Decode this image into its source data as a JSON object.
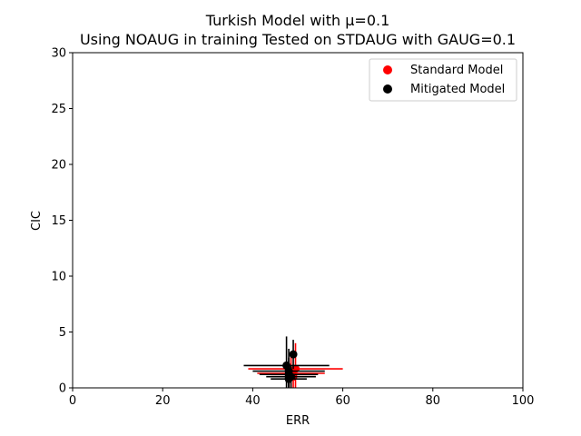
{
  "chart_data": {
    "type": "scatter",
    "title": "Turkish Model with μ=0.1",
    "subtitle": "Using NOAUG in training Tested on STDAUG with GAUG=0.1",
    "xlabel": "ERR",
    "ylabel": "CIC",
    "xlim": [
      0,
      100
    ],
    "ylim": [
      0,
      30
    ],
    "xticks": [
      0,
      20,
      40,
      60,
      80,
      100
    ],
    "yticks": [
      0,
      5,
      10,
      15,
      20,
      25,
      30
    ],
    "xtick_labels": [
      "0",
      "20",
      "40",
      "60",
      "80",
      "100"
    ],
    "ytick_labels": [
      "0",
      "5",
      "10",
      "15",
      "20",
      "25",
      "30"
    ],
    "grid": false,
    "legend_position": "top-right",
    "series": [
      {
        "name": "Standard Model",
        "color": "#ff0000",
        "points": [
          {
            "x": 49.5,
            "y": 1.7,
            "xerr": 10.5,
            "yerr": 2.3
          },
          {
            "x": 48.5,
            "y": 1.3,
            "xerr": 7.5,
            "yerr": 1.5
          },
          {
            "x": 49.0,
            "y": 1.0,
            "xerr": 5.0,
            "yerr": 1.0
          }
        ]
      },
      {
        "name": "Mitigated Model",
        "color": "#000000",
        "points": [
          {
            "x": 47.5,
            "y": 2.0,
            "xerr": 9.5,
            "yerr": 2.6
          },
          {
            "x": 49.0,
            "y": 3.0,
            "xerr": 0.5,
            "yerr": 1.3
          },
          {
            "x": 48.0,
            "y": 1.5,
            "xerr": 8.0,
            "yerr": 2.0
          },
          {
            "x": 48.0,
            "y": 1.2,
            "xerr": 6.5,
            "yerr": 1.5
          },
          {
            "x": 48.5,
            "y": 1.0,
            "xerr": 5.5,
            "yerr": 1.0
          },
          {
            "x": 48.0,
            "y": 0.8,
            "xerr": 4.0,
            "yerr": 0.8
          }
        ]
      }
    ]
  }
}
